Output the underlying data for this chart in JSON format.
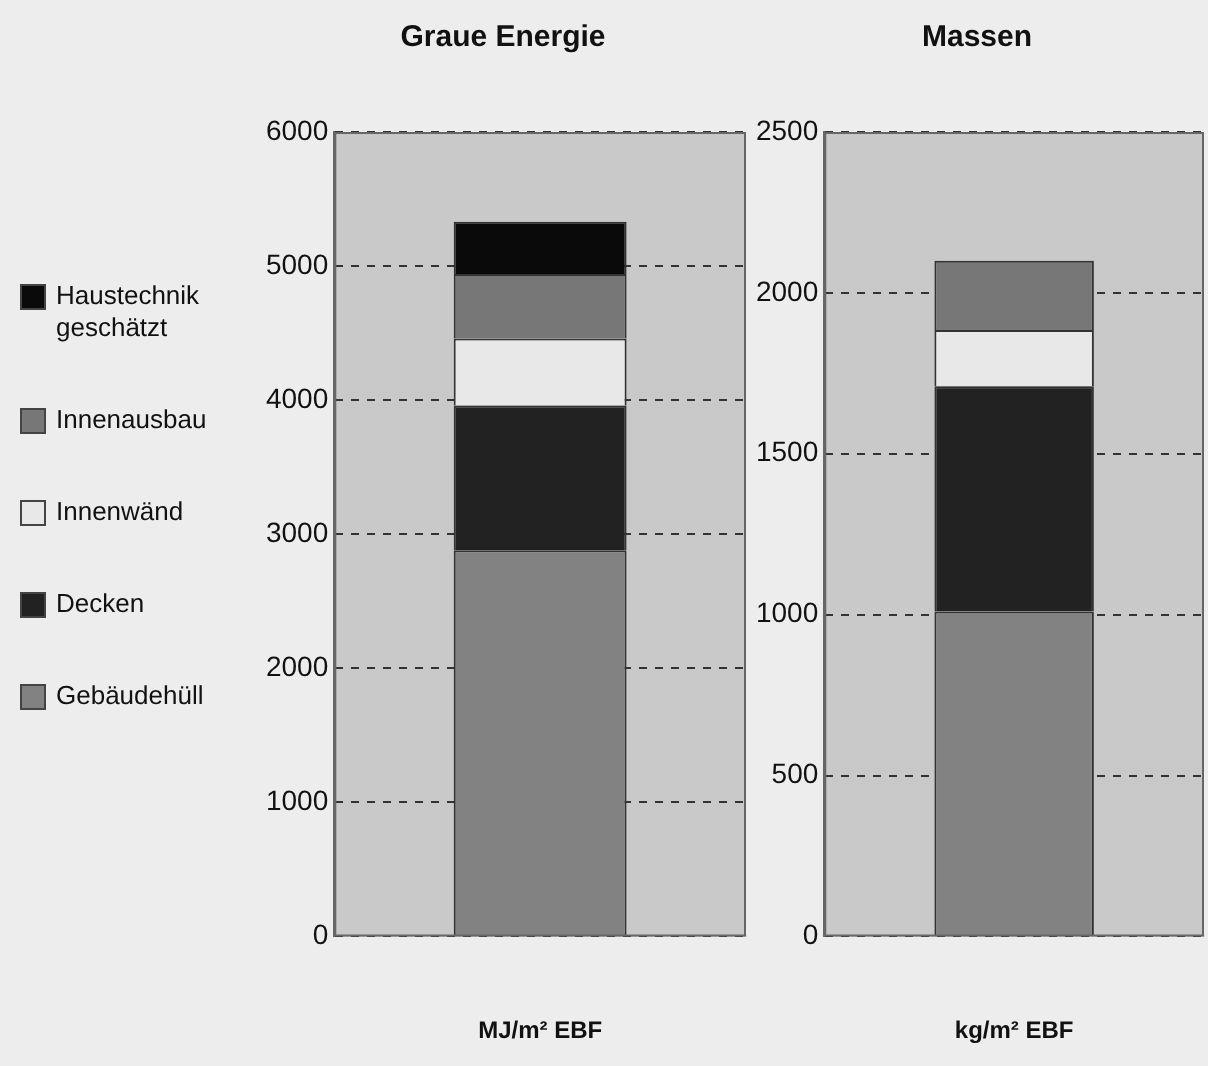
{
  "chart_data": [
    {
      "type": "bar",
      "title": "Graue Energie",
      "xlabel": "MJ/m² EBF",
      "categories": [
        null
      ],
      "stacked": true,
      "ylim": [
        0,
        6000
      ],
      "yticks": [
        0,
        1000,
        2000,
        3000,
        4000,
        5000,
        6000
      ],
      "grid": "y",
      "legend": "left",
      "series": [
        {
          "name": "Gebäudehüll",
          "color": "#828282",
          "values": [
            2880
          ]
        },
        {
          "name": "Decken",
          "color": "#222222",
          "values": [
            1080
          ]
        },
        {
          "name": "Innenwänd",
          "color": "#e8e8e8",
          "values": [
            500
          ]
        },
        {
          "name": "Innenausbau",
          "color": "#777777",
          "values": [
            480
          ]
        },
        {
          "name": "Haustechnik geschätzt",
          "color": "#0a0a0a",
          "values": [
            390
          ]
        }
      ]
    },
    {
      "type": "bar",
      "title": "Massen",
      "xlabel": "kg/m² EBF",
      "categories": [
        null
      ],
      "stacked": true,
      "ylim": [
        0,
        2500
      ],
      "yticks": [
        0,
        500,
        1000,
        1500,
        2000,
        2500
      ],
      "grid": "y",
      "series": [
        {
          "color": "#828282",
          "values": [
            1010
          ]
        },
        {
          "color": "#222222",
          "values": [
            700
          ]
        },
        {
          "color": "#e8e8e8",
          "values": [
            175
          ]
        },
        {
          "color": "#777777",
          "values": [
            215
          ]
        },
        {
          "color": "#0a0a0a",
          "values": [
            null
          ]
        }
      ]
    }
  ]
}
